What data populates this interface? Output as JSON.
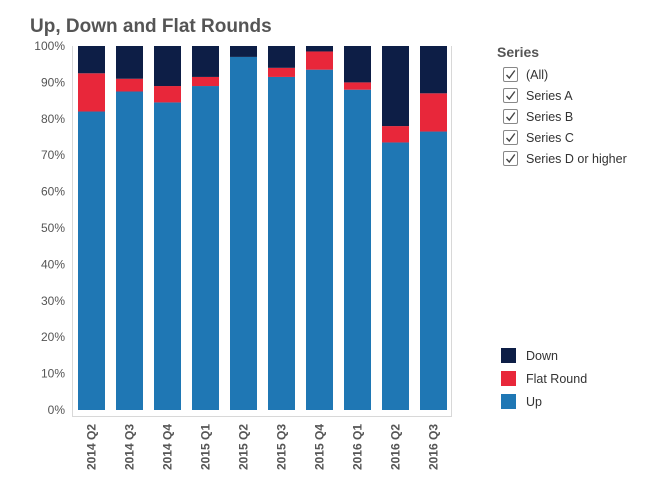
{
  "chart_data": {
    "type": "bar",
    "stacked": true,
    "title": "Up, Down and Flat Rounds",
    "xlabel": "",
    "ylabel": "",
    "ylim": [
      0,
      100
    ],
    "yticks": [
      "0%",
      "10%",
      "20%",
      "30%",
      "40%",
      "50%",
      "60%",
      "70%",
      "80%",
      "90%",
      "100%"
    ],
    "categories": [
      "2014 Q2",
      "2014 Q3",
      "2014 Q4",
      "2015 Q1",
      "2015 Q2",
      "2015 Q3",
      "2015 Q4",
      "2016 Q1",
      "2016 Q2",
      "2016 Q3"
    ],
    "series": [
      {
        "name": "Up",
        "color": "#1f77b4",
        "values": [
          82,
          87.5,
          84.5,
          89,
          97,
          91.5,
          93.5,
          88,
          73.5,
          76.5
        ]
      },
      {
        "name": "Flat Round",
        "color": "#e8273a",
        "values": [
          10.5,
          3.5,
          4.5,
          2.5,
          0,
          2.5,
          5,
          2,
          4.5,
          10.5
        ]
      },
      {
        "name": "Down",
        "color": "#0d1e46",
        "values": [
          7.5,
          9,
          11,
          8.5,
          3,
          6,
          1.5,
          10,
          22,
          13
        ]
      }
    ],
    "grid": false,
    "legend_position": "bottom-right"
  },
  "filter": {
    "title": "Series",
    "items": [
      {
        "label": "(All)",
        "checked": true
      },
      {
        "label": "Series A",
        "checked": true
      },
      {
        "label": "Series B",
        "checked": true
      },
      {
        "label": "Series C",
        "checked": true
      },
      {
        "label": "Series D or higher",
        "checked": true
      }
    ]
  },
  "legend": {
    "items": [
      {
        "label": "Down",
        "color": "#0d1e46"
      },
      {
        "label": "Flat Round",
        "color": "#e8273a"
      },
      {
        "label": "Up",
        "color": "#1f77b4"
      }
    ]
  }
}
